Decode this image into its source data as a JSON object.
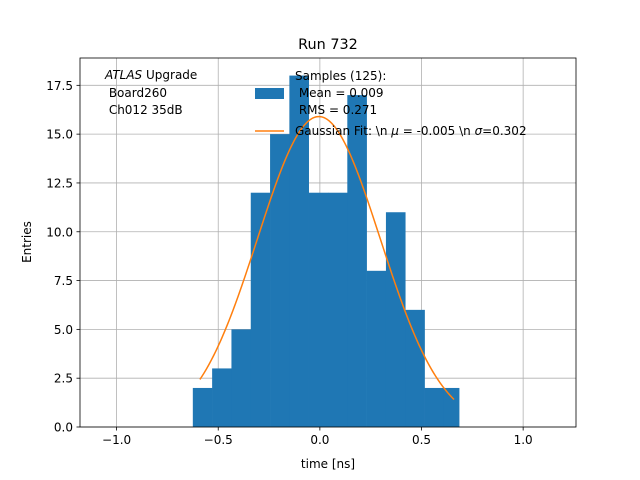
{
  "chart_data": {
    "type": "bar",
    "title": "Run 732",
    "xlabel": "time [ns]",
    "ylabel": "Entries",
    "xlim": [
      -1.18,
      1.26
    ],
    "ylim": [
      0,
      18.9
    ],
    "grid": true,
    "legend_position": "upper-right",
    "xticks": [
      -1.0,
      -0.5,
      0.0,
      0.5,
      1.0
    ],
    "xtick_labels": [
      "−1.0",
      "−0.5",
      "0.0",
      "0.5",
      "1.0"
    ],
    "yticks": [
      0,
      2.5,
      5,
      7.5,
      10,
      12.5,
      15,
      17.5
    ],
    "ytick_labels": [
      "0.0",
      "2.5",
      "5.0",
      "7.5",
      "10.0",
      "12.5",
      "15.0",
      "17.5"
    ],
    "annotation": {
      "italic": "ATLAS",
      "line1_rest": " Upgrade",
      "line2": " Board260",
      "line3": " Ch012 35dB"
    },
    "histogram": {
      "name_lines": [
        "Samples (125):",
        " Mean = 0.009",
        " RMS = 0.271"
      ],
      "color": "#1f77b4",
      "bins": [
        {
          "x0": -0.625,
          "x1": -0.53,
          "count": 2
        },
        {
          "x0": -0.53,
          "x1": -0.435,
          "count": 3
        },
        {
          "x0": -0.435,
          "x1": -0.34,
          "count": 5
        },
        {
          "x0": -0.34,
          "x1": -0.245,
          "count": 12
        },
        {
          "x0": -0.245,
          "x1": -0.15,
          "count": 15
        },
        {
          "x0": -0.15,
          "x1": -0.055,
          "count": 18
        },
        {
          "x0": -0.055,
          "x1": 0.04,
          "count": 12
        },
        {
          "x0": 0.04,
          "x1": 0.135,
          "count": 12
        },
        {
          "x0": 0.135,
          "x1": 0.23,
          "count": 17
        },
        {
          "x0": 0.23,
          "x1": 0.325,
          "count": 8
        },
        {
          "x0": 0.325,
          "x1": 0.42,
          "count": 11
        },
        {
          "x0": 0.42,
          "x1": 0.515,
          "count": 6
        },
        {
          "x0": 0.515,
          "x1": 0.61,
          "count": 2
        },
        {
          "x0": 0.61,
          "x1": 0.685,
          "count": 2
        }
      ]
    },
    "fit": {
      "name": "Gaussian Fit: \\n $\\mu$ = -0.005 \\n $\\sigma$=0.302",
      "label_prefix": "Gaussian Fit: \\n ",
      "mu_symbol": "μ",
      "label_middle": " = -0.005 \\n ",
      "sigma_symbol": "σ",
      "label_suffix": "=0.302",
      "color": "#ff7f0e",
      "amplitude": 15.9,
      "mu": -0.005,
      "sigma": 0.302,
      "x_range": [
        -0.59,
        0.66
      ]
    }
  }
}
